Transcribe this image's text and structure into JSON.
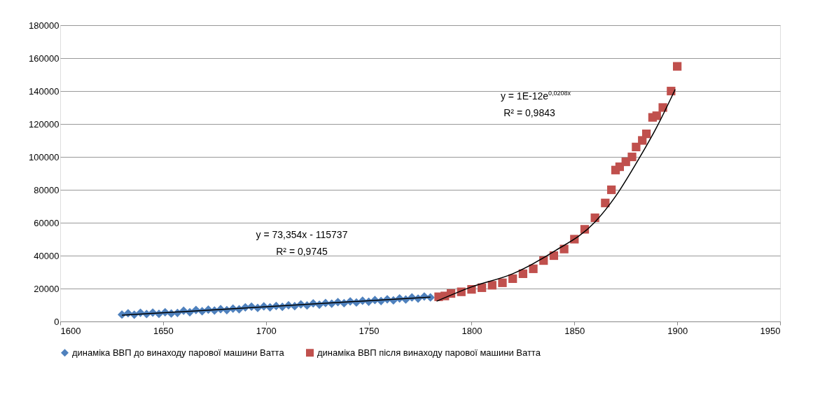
{
  "chart_data": {
    "type": "scatter",
    "xlim": [
      1600,
      1950
    ],
    "xticks": [
      1600,
      1650,
      1700,
      1750,
      1800,
      1850,
      1900,
      1950
    ],
    "ylim": [
      0,
      180000
    ],
    "yticks": [
      0,
      20000,
      40000,
      60000,
      80000,
      100000,
      120000,
      140000,
      160000,
      180000
    ],
    "grid": "y",
    "legend": "bottom",
    "annotations": [
      "y = 73,354x - 115737",
      "R² = 0,9745",
      "y = 1E-12e$^{0,0208x}$",
      "R² = 0,9843"
    ],
    "series": [
      {
        "name": "динаміка ВВП до винаходу парової машини Ватта",
        "color": "#4f81bd",
        "marker": "diamond",
        "x": [
          1630,
          1633,
          1636,
          1639,
          1642,
          1645,
          1648,
          1651,
          1654,
          1657,
          1660,
          1663,
          1666,
          1669,
          1672,
          1675,
          1678,
          1681,
          1684,
          1687,
          1690,
          1693,
          1696,
          1699,
          1702,
          1705,
          1708,
          1711,
          1714,
          1717,
          1720,
          1723,
          1726,
          1729,
          1732,
          1735,
          1738,
          1741,
          1744,
          1747,
          1750,
          1753,
          1756,
          1759,
          1762,
          1765,
          1768,
          1771,
          1774,
          1777,
          1780
        ],
        "values": [
          4200,
          5000,
          4100,
          5300,
          4500,
          5400,
          4600,
          5600,
          4800,
          5200,
          6500,
          5600,
          7000,
          6200,
          7200,
          6600,
          7500,
          6900,
          7800,
          7400,
          8600,
          9000,
          8200,
          9200,
          8600,
          9400,
          8900,
          9800,
          9300,
          10400,
          9700,
          11000,
          10200,
          11200,
          10800,
          11800,
          11100,
          12200,
          11500,
          12600,
          12000,
          13000,
          12400,
          13500,
          12800,
          14000,
          13300,
          14600,
          13900,
          15200,
          14600
        ]
      },
      {
        "name": "динаміка ВВП після винаходу парової машини Ватта",
        "color": "#c0504d",
        "marker": "square",
        "x": [
          1784,
          1787,
          1790,
          1795,
          1800,
          1805,
          1810,
          1815,
          1820,
          1825,
          1830,
          1835,
          1840,
          1845,
          1850,
          1855,
          1860,
          1865,
          1868,
          1870,
          1872,
          1875,
          1878,
          1880,
          1883,
          1885,
          1888,
          1890,
          1893,
          1897,
          1900
        ],
        "values": [
          15000,
          15500,
          17000,
          18000,
          19500,
          20500,
          22000,
          23500,
          26000,
          29000,
          32000,
          37000,
          40000,
          44000,
          50000,
          56000,
          63000,
          72000,
          80000,
          92000,
          94000,
          97000,
          100000,
          106000,
          110000,
          114000,
          124000,
          125000,
          130000,
          140000,
          155000
        ]
      },
      {
        "type": "line",
        "color": "#000000",
        "marker": "none",
        "x": [
          1630,
          1780
        ],
        "values": [
          3800,
          14800
        ]
      },
      {
        "type": "line",
        "color": "#000000",
        "marker": "none",
        "x": [
          1783,
          1800,
          1820,
          1840,
          1860,
          1870,
          1880,
          1890,
          1899
        ],
        "values": [
          12300,
          21000,
          29000,
          42500,
          60400,
          76000,
          96000,
          118000,
          141000
        ]
      }
    ]
  }
}
